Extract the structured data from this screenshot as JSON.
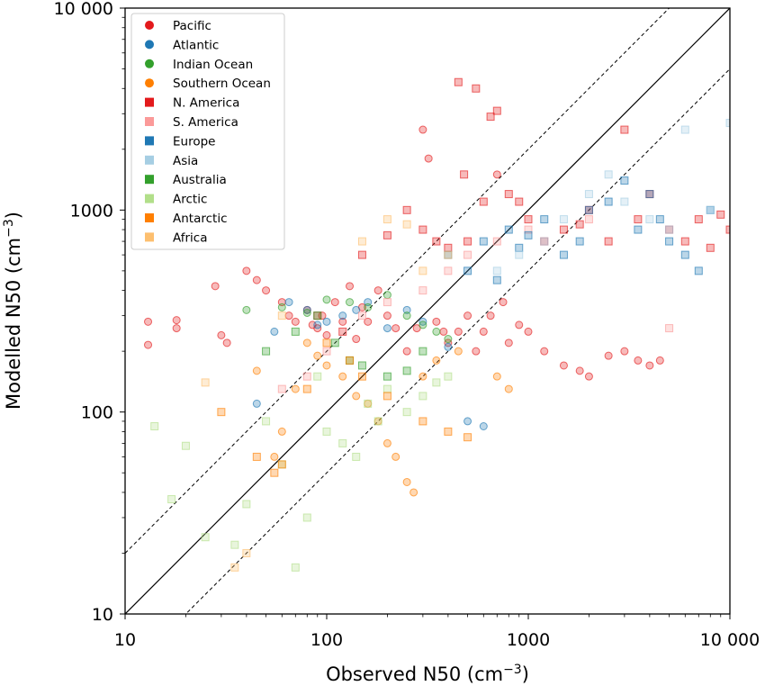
{
  "chart_data": {
    "type": "scatter",
    "title": "",
    "xlabel": "Observed N50 (cm",
    "ylabel": "Modelled N50 (cm",
    "label_unit_exponent": "−3",
    "label_close": ")",
    "x_scale": "log",
    "y_scale": "log",
    "xlim": [
      10,
      10000
    ],
    "ylim": [
      10,
      10000
    ],
    "x_ticks": [
      {
        "value": 10,
        "label": "10"
      },
      {
        "value": 100,
        "label": "100"
      },
      {
        "value": 1000,
        "label": "1000"
      },
      {
        "value": 10000,
        "label": "10 000"
      }
    ],
    "y_ticks": [
      {
        "value": 10,
        "label": "10"
      },
      {
        "value": 100,
        "label": "100"
      },
      {
        "value": 1000,
        "label": "1000"
      },
      {
        "value": 10000,
        "label": "10 000"
      }
    ],
    "grid": false,
    "legend_position": "top-left",
    "reference_lines": [
      {
        "kind": "one-to-one",
        "factor": 1,
        "style": "solid"
      },
      {
        "kind": "factor-upper",
        "factor": 2,
        "style": "dashed"
      },
      {
        "kind": "factor-lower",
        "factor": 0.5,
        "style": "dashed"
      }
    ],
    "series": [
      {
        "name": "Pacific",
        "marker": "circle",
        "color": "#e31a1c",
        "x": [
          13,
          13,
          18,
          18,
          28,
          30,
          32,
          40,
          45,
          50,
          60,
          65,
          70,
          80,
          85,
          90,
          95,
          100,
          110,
          120,
          130,
          140,
          150,
          160,
          180,
          200,
          220,
          250,
          280,
          300,
          320,
          350,
          380,
          400,
          450,
          500,
          550,
          600,
          650,
          700,
          750,
          800,
          900,
          1000,
          1200,
          1500,
          1800,
          2000,
          2500,
          3000,
          3500,
          4000,
          4500
        ],
        "y": [
          280,
          215,
          285,
          260,
          420,
          240,
          220,
          500,
          450,
          400,
          350,
          300,
          280,
          320,
          270,
          260,
          300,
          240,
          350,
          280,
          420,
          230,
          330,
          280,
          400,
          300,
          260,
          200,
          260,
          2500,
          1800,
          280,
          250,
          220,
          250,
          300,
          200,
          250,
          300,
          1500,
          350,
          220,
          270,
          250,
          200,
          170,
          160,
          150,
          190,
          200,
          180,
          170,
          180
        ]
      },
      {
        "name": "Atlantic",
        "marker": "circle",
        "color": "#1f78b4",
        "x": [
          45,
          55,
          65,
          80,
          90,
          100,
          120,
          140,
          160,
          200,
          250,
          300,
          400,
          500,
          600
        ],
        "y": [
          110,
          250,
          350,
          320,
          270,
          280,
          300,
          320,
          350,
          260,
          320,
          280,
          210,
          90,
          85
        ]
      },
      {
        "name": "Indian Ocean",
        "marker": "circle",
        "color": "#33a02c",
        "x": [
          40,
          60,
          80,
          100,
          130,
          160,
          200,
          250,
          300,
          350,
          400
        ],
        "y": [
          320,
          330,
          310,
          360,
          350,
          330,
          380,
          300,
          270,
          250,
          230
        ]
      },
      {
        "name": "Southern Ocean",
        "marker": "circle",
        "color": "#ff7f00",
        "x": [
          45,
          55,
          60,
          70,
          80,
          90,
          100,
          120,
          140,
          160,
          180,
          200,
          220,
          250,
          270,
          300,
          350,
          450,
          700,
          800
        ],
        "y": [
          160,
          60,
          80,
          130,
          220,
          190,
          170,
          150,
          120,
          110,
          90,
          70,
          60,
          45,
          40,
          150,
          180,
          200,
          150,
          130
        ]
      },
      {
        "name": "N. America",
        "marker": "square",
        "color": "#e31a1c",
        "x": [
          90,
          120,
          150,
          200,
          250,
          300,
          350,
          400,
          450,
          480,
          500,
          550,
          600,
          650,
          700,
          800,
          900,
          1000,
          1200,
          1500,
          1800,
          2000,
          2500,
          3000,
          3500,
          4000,
          5000,
          6000,
          7000,
          8000,
          9000,
          10000
        ],
        "y": [
          300,
          250,
          600,
          750,
          1000,
          800,
          700,
          650,
          4300,
          1500,
          700,
          4000,
          1100,
          2900,
          3100,
          1200,
          1100,
          900,
          700,
          800,
          850,
          1000,
          700,
          2500,
          900,
          1200,
          800,
          700,
          900,
          650,
          950,
          800
        ]
      },
      {
        "name": "S. America",
        "marker": "square",
        "color": "#fb9a99",
        "x": [
          60,
          80,
          100,
          150,
          200,
          300,
          400,
          500,
          700,
          1000,
          2000,
          5000
        ],
        "y": [
          130,
          150,
          200,
          300,
          350,
          400,
          500,
          600,
          700,
          800,
          900,
          260
        ]
      },
      {
        "name": "Europe",
        "marker": "square",
        "color": "#1f78b4",
        "x": [
          400,
          500,
          600,
          700,
          800,
          900,
          1000,
          1200,
          1500,
          1800,
          2000,
          2500,
          3000,
          3500,
          4000,
          4500,
          5000,
          6000,
          7000,
          8000
        ],
        "y": [
          600,
          500,
          700,
          450,
          800,
          650,
          750,
          900,
          600,
          700,
          1000,
          1100,
          1400,
          800,
          1200,
          900,
          700,
          600,
          500,
          1000
        ]
      },
      {
        "name": "Asia",
        "marker": "square",
        "color": "#a6cee3",
        "x": [
          700,
          900,
          1200,
          1500,
          2000,
          2500,
          3000,
          4000,
          5000,
          6000,
          8000,
          10000
        ],
        "y": [
          500,
          600,
          700,
          900,
          1200,
          1500,
          1100,
          900,
          800,
          2500,
          1000,
          2700
        ]
      },
      {
        "name": "Australia",
        "marker": "square",
        "color": "#33a02c",
        "x": [
          50,
          70,
          90,
          110,
          130,
          150,
          200,
          250,
          300
        ],
        "y": [
          200,
          250,
          300,
          220,
          180,
          170,
          150,
          160,
          200
        ]
      },
      {
        "name": "Arctic",
        "marker": "square",
        "color": "#b2df8a",
        "x": [
          14,
          17,
          20,
          25,
          35,
          40,
          50,
          60,
          70,
          80,
          90,
          100,
          120,
          140,
          160,
          180,
          200,
          250,
          300,
          350,
          400
        ],
        "y": [
          85,
          37,
          68,
          24,
          22,
          35,
          90,
          55,
          17,
          30,
          150,
          80,
          70,
          60,
          110,
          90,
          130,
          100,
          120,
          140,
          150
        ]
      },
      {
        "name": "Antarctic",
        "marker": "square",
        "color": "#ff7f00",
        "x": [
          30,
          45,
          55,
          60,
          80,
          100,
          130,
          150,
          200,
          300,
          400,
          500
        ],
        "y": [
          100,
          60,
          50,
          55,
          130,
          220,
          180,
          150,
          120,
          90,
          80,
          75
        ]
      },
      {
        "name": "Africa",
        "marker": "square",
        "color": "#fdbf6f",
        "x": [
          25,
          35,
          40,
          60,
          150,
          200,
          250,
          300,
          400
        ],
        "y": [
          140,
          17,
          20,
          300,
          700,
          900,
          850,
          500,
          600
        ]
      }
    ]
  }
}
